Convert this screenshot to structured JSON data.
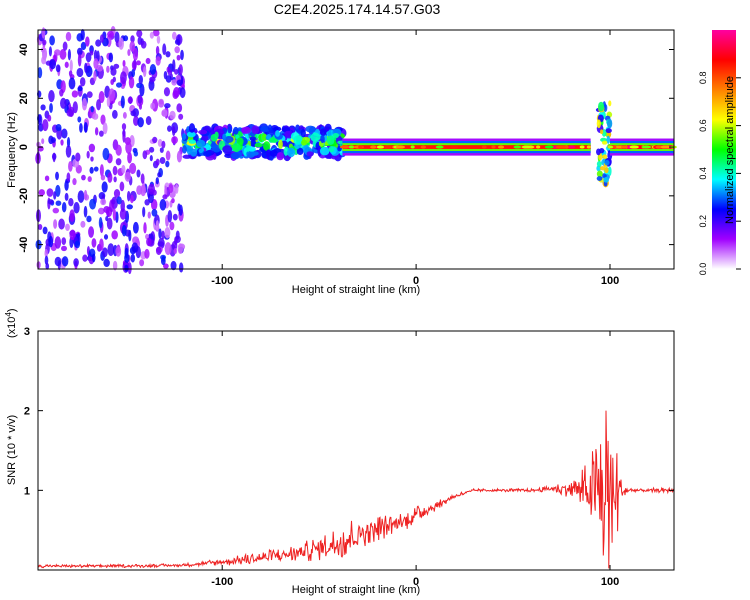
{
  "title": "C2E4.2025.174.14.57.G03",
  "chart_data": [
    {
      "type": "heatmap",
      "name": "spectrogram",
      "xlabel": "Height of straight line (km)",
      "ylabel": "Frequency (Hz)",
      "xlim": [
        -195,
        133
      ],
      "ylim": [
        -50,
        48
      ],
      "xticks": [
        -100,
        0,
        100
      ],
      "yticks": [
        -40,
        -20,
        0,
        20,
        40
      ],
      "colorbar": {
        "label": "Normalized spectral amplitude",
        "range": [
          0,
          1
        ],
        "ticks": [
          0.0,
          0.2,
          0.4,
          0.6,
          0.8
        ],
        "colors": [
          "#ffffff",
          "#a000ff",
          "#0000ff",
          "#00ffff",
          "#00ff00",
          "#ffff00",
          "#ff8000",
          "#ff0000",
          "#ff00a0"
        ]
      },
      "features": [
        {
          "region": "broadband scatter",
          "x_range": [
            -195,
            -120
          ],
          "freq_range": [
            -50,
            48
          ],
          "amplitude": 0.15
        },
        {
          "region": "noisy band",
          "x_range": [
            -120,
            -38
          ],
          "freq_center": 2,
          "freq_halfwidth": 6,
          "amplitude": 0.45
        },
        {
          "region": "stable carrier",
          "x_range": [
            -38,
            90
          ],
          "freq_center": 0,
          "freq_halfwidth": 1.5,
          "amplitude": 0.85
        },
        {
          "region": "burst",
          "x": 97,
          "freq_range": [
            -15,
            18
          ],
          "amplitude": 0.5
        },
        {
          "region": "stable carrier",
          "x_range": [
            100,
            133
          ],
          "freq_center": 0,
          "freq_halfwidth": 1.5,
          "amplitude": 0.9
        }
      ]
    },
    {
      "type": "line",
      "name": "snr",
      "xlabel": "Height of straight line (km)",
      "ylabel": "SNR (10 * v/v)",
      "y_scale_label": "(x10",
      "y_scale_exp": "4",
      "xlim": [
        -195,
        133
      ],
      "ylim": [
        0,
        3
      ],
      "xticks": [
        -100,
        0,
        100
      ],
      "yticks": [
        1,
        2,
        3
      ],
      "color": "#ee2222",
      "x": [
        -195,
        -150,
        -120,
        -100,
        -80,
        -60,
        -45,
        -35,
        -25,
        -15,
        -5,
        0,
        10,
        20,
        30,
        40,
        50,
        60,
        70,
        80,
        88,
        93,
        96,
        98,
        100,
        103,
        106,
        110,
        120,
        133
      ],
      "y": [
        0.05,
        0.05,
        0.06,
        0.1,
        0.15,
        0.22,
        0.3,
        0.4,
        0.5,
        0.55,
        0.62,
        0.7,
        0.8,
        0.93,
        1.0,
        1.0,
        1.0,
        1.0,
        1.02,
        1.02,
        1.0,
        0.95,
        0.95,
        0.97,
        0.95,
        0.95,
        0.98,
        1.0,
        1.0,
        1.0
      ],
      "noise_amp": [
        0.02,
        0.02,
        0.02,
        0.05,
        0.08,
        0.12,
        0.18,
        0.25,
        0.18,
        0.15,
        0.12,
        0.1,
        0.06,
        0.03,
        0.02,
        0.02,
        0.02,
        0.02,
        0.04,
        0.12,
        0.35,
        0.7,
        1.2,
        1.9,
        1.2,
        0.8,
        0.1,
        0.04,
        0.03,
        0.03
      ]
    }
  ]
}
